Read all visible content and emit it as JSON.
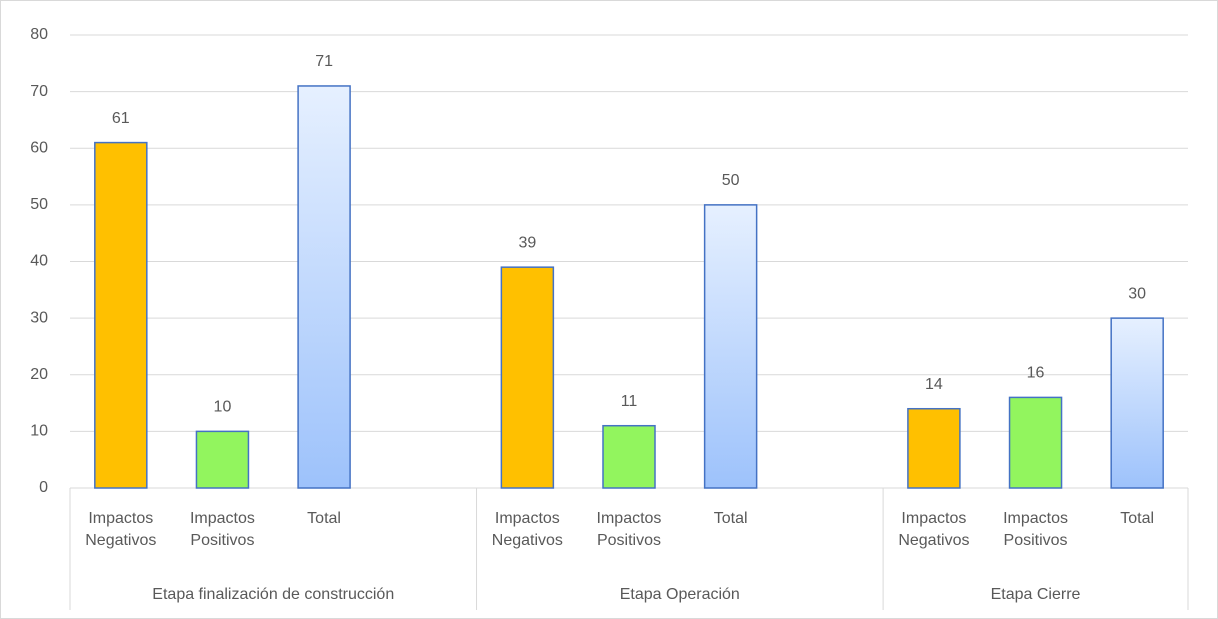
{
  "chart_data": {
    "type": "bar",
    "groups": [
      {
        "name": "Etapa finalización de construcción",
        "categories": [
          "Impactos Negativos",
          "Impactos Positivos",
          "Total",
          null
        ],
        "values": [
          61,
          10,
          71,
          null
        ],
        "colors": [
          "#ffc000",
          "#92f55e",
          [
            "#e6f0ff",
            "#9dc2fb"
          ],
          null
        ]
      },
      {
        "name": "Etapa Operación",
        "categories": [
          "Impactos Negativos",
          "Impactos Positivos",
          "Total",
          null
        ],
        "values": [
          39,
          11,
          50,
          null
        ],
        "colors": [
          "#ffc000",
          "#92f55e",
          [
            "#e6f0ff",
            "#9dc2fb"
          ],
          null
        ]
      },
      {
        "name": "Etapa Cierre",
        "categories": [
          "Impactos Negativos",
          "Impactos Positivos",
          "Total"
        ],
        "values": [
          14,
          16,
          30
        ],
        "colors": [
          "#ffc000",
          "#92f55e",
          [
            "#e6f0ff",
            "#9dc2fb"
          ]
        ]
      }
    ],
    "bar_stroke": "#4472c4",
    "ylim": [
      0,
      80
    ],
    "yticks": [
      0,
      10,
      20,
      30,
      40,
      50,
      60,
      70,
      80
    ],
    "grid": true
  }
}
